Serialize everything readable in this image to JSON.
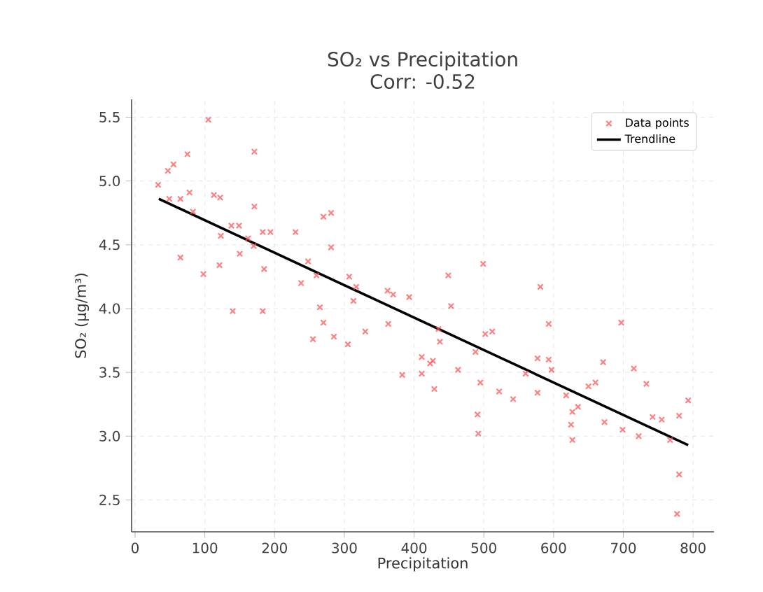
{
  "chart_data": {
    "type": "scatter",
    "title": "SO₂ vs Precipitation",
    "subtitle": "Corr: -0.52",
    "xlabel": "Precipitation",
    "ylabel": "SO₂ (µg/m³)",
    "xlim": [
      -5,
      830
    ],
    "ylim": [
      2.25,
      5.64
    ],
    "xticks": [
      0,
      100,
      200,
      300,
      400,
      500,
      600,
      700,
      800
    ],
    "yticks": [
      2.5,
      {
        "value": 3,
        "label": "3.0"
      },
      3.5,
      {
        "value": 4,
        "label": "4.0"
      },
      4.5,
      {
        "value": 5,
        "label": "5.0"
      },
      5.5
    ],
    "grid": true,
    "legend": "top right",
    "series": [
      {
        "name": "Data points",
        "marker": "cross",
        "color": "#ff5555",
        "x": [
          33,
          47,
          55,
          75,
          105,
          171,
          49,
          65,
          78,
          83,
          113,
          122,
          171,
          65,
          98,
          121,
          123,
          138,
          149,
          150,
          162,
          170,
          183,
          194,
          185,
          230,
          140,
          183,
          248,
          238,
          260,
          270,
          281,
          281,
          307,
          317,
          313,
          265,
          362,
          370,
          393,
          270,
          255,
          285,
          305,
          330,
          363,
          383,
          411,
          411,
          423,
          429,
          449,
          453,
          499,
          435,
          437,
          427,
          463,
          488,
          502,
          512,
          495,
          491,
          492,
          522,
          542,
          560,
          577,
          581,
          593,
          593,
          597,
          577,
          618,
          627,
          625,
          627,
          635,
          650,
          660,
          671,
          673,
          697,
          699,
          715,
          733,
          722,
          742,
          755,
          767,
          780,
          793,
          780,
          777
        ],
        "values": [
          4.97,
          5.08,
          5.13,
          5.21,
          5.48,
          5.23,
          4.86,
          4.86,
          4.91,
          4.76,
          4.89,
          4.87,
          4.8,
          4.4,
          4.27,
          4.34,
          4.57,
          4.65,
          4.65,
          4.43,
          4.55,
          4.49,
          4.6,
          4.6,
          4.31,
          4.6,
          3.98,
          3.98,
          4.37,
          4.2,
          4.26,
          4.72,
          4.75,
          4.48,
          4.25,
          4.17,
          4.06,
          4.01,
          4.14,
          4.11,
          4.09,
          3.89,
          3.76,
          3.78,
          3.72,
          3.82,
          3.88,
          3.48,
          3.62,
          3.49,
          3.57,
          3.37,
          4.26,
          4.02,
          4.35,
          3.84,
          3.74,
          3.59,
          3.52,
          3.66,
          3.8,
          3.82,
          3.42,
          3.17,
          3.02,
          3.35,
          3.29,
          3.49,
          3.61,
          4.17,
          3.88,
          3.6,
          3.52,
          3.34,
          3.32,
          3.19,
          3.09,
          2.97,
          3.23,
          3.39,
          3.42,
          3.58,
          3.11,
          3.89,
          3.05,
          3.53,
          3.41,
          3.0,
          3.15,
          3.13,
          2.97,
          3.16,
          3.28,
          2.7,
          2.39
        ]
      },
      {
        "name": "Trendline",
        "type": "line",
        "line_style": "solid",
        "color": "#000000",
        "x": [
          34,
          793
        ],
        "values": [
          4.86,
          2.93
        ]
      }
    ]
  }
}
